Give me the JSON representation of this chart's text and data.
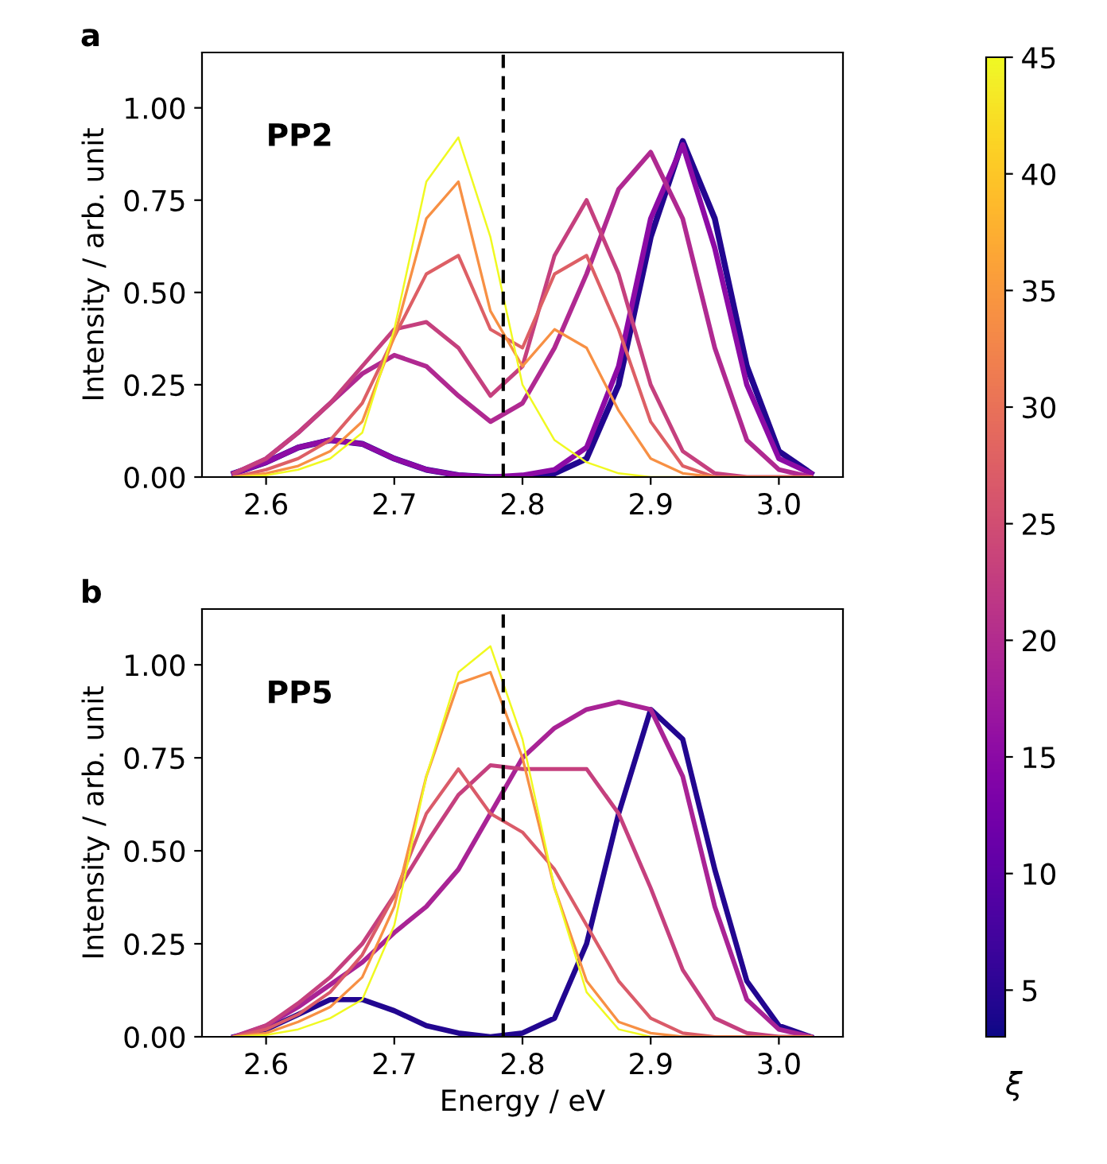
{
  "chart_data": [
    {
      "type": "line",
      "title": "a",
      "ylabel": "Intensity / arb. unit",
      "annotations": [
        "PP2"
      ],
      "x": [
        2.575,
        2.6,
        2.625,
        2.65,
        2.675,
        2.7,
        2.725,
        2.75,
        2.775,
        2.8,
        2.825,
        2.85,
        2.875,
        2.9,
        2.925,
        2.95,
        2.975,
        3.0,
        3.025
      ],
      "series": [
        {
          "color": "#220690",
          "values": [
            0.01,
            0.04,
            0.08,
            0.1,
            0.09,
            0.05,
            0.02,
            0.005,
            0.0,
            0.0,
            0.01,
            0.05,
            0.25,
            0.65,
            0.91,
            0.7,
            0.3,
            0.07,
            0.01
          ]
        },
        {
          "color": "#8d0ba5",
          "values": [
            0.01,
            0.04,
            0.08,
            0.1,
            0.09,
            0.05,
            0.02,
            0.005,
            0.0,
            0.005,
            0.02,
            0.08,
            0.3,
            0.7,
            0.9,
            0.62,
            0.25,
            0.05,
            0.01
          ]
        },
        {
          "color": "#b02991",
          "values": [
            0.01,
            0.05,
            0.12,
            0.2,
            0.28,
            0.33,
            0.3,
            0.22,
            0.15,
            0.2,
            0.35,
            0.55,
            0.78,
            0.88,
            0.7,
            0.35,
            0.1,
            0.02,
            0.0
          ]
        },
        {
          "color": "#c5407e",
          "values": [
            0.01,
            0.05,
            0.12,
            0.2,
            0.3,
            0.4,
            0.42,
            0.35,
            0.22,
            0.3,
            0.6,
            0.75,
            0.55,
            0.25,
            0.07,
            0.01,
            0.0,
            0.0,
            0.0
          ]
        },
        {
          "color": "#dd5f65",
          "values": [
            0.0,
            0.02,
            0.05,
            0.1,
            0.2,
            0.38,
            0.55,
            0.6,
            0.4,
            0.35,
            0.55,
            0.6,
            0.4,
            0.15,
            0.03,
            0.0,
            0.0,
            0.0,
            0.0
          ]
        },
        {
          "color": "#f79044",
          "values": [
            0.0,
            0.01,
            0.03,
            0.07,
            0.15,
            0.38,
            0.7,
            0.8,
            0.45,
            0.3,
            0.4,
            0.35,
            0.18,
            0.05,
            0.01,
            0.0,
            0.0,
            0.0,
            0.0
          ]
        },
        {
          "color": "#f0f921",
          "values": [
            0.0,
            0.005,
            0.02,
            0.05,
            0.12,
            0.4,
            0.8,
            0.92,
            0.65,
            0.25,
            0.1,
            0.04,
            0.01,
            0.0,
            0.0,
            null,
            null,
            null,
            null
          ]
        }
      ],
      "xlim": [
        2.55,
        3.05
      ],
      "xticks": [
        2.6,
        2.7,
        2.8,
        2.9,
        {
          "value": 3.0,
          "label": "3.0"
        }
      ],
      "ylim": [
        0,
        1.15
      ],
      "yticks": [
        {
          "value": 0,
          "label": "0.00"
        },
        {
          "value": 0.25,
          "label": "0.25"
        },
        {
          "value": 0.5,
          "label": "0.50"
        },
        {
          "value": 0.75,
          "label": "0.75"
        },
        {
          "value": 1.0,
          "label": "1.00"
        }
      ],
      "ref_lines": [
        {
          "axis": "x",
          "value": 2.785,
          "color": "#000000",
          "line_style": "dashed"
        }
      ],
      "grid": false,
      "legend": false
    },
    {
      "type": "line",
      "title": "b",
      "xlabel": "Energy / eV",
      "ylabel": "Intensity / arb. unit",
      "annotations": [
        "PP5"
      ],
      "x": [
        2.575,
        2.6,
        2.625,
        2.65,
        2.675,
        2.7,
        2.725,
        2.75,
        2.775,
        2.8,
        2.825,
        2.85,
        2.875,
        2.9,
        2.925,
        2.95,
        2.975,
        3.0,
        3.025
      ],
      "series": [
        {
          "color": "#220690",
          "values": [
            0.0,
            0.02,
            0.06,
            0.1,
            0.1,
            0.07,
            0.03,
            0.01,
            0.0,
            0.01,
            0.05,
            0.25,
            0.6,
            0.88,
            0.8,
            0.45,
            0.15,
            0.03,
            0.0
          ]
        },
        {
          "color": "#a92395",
          "values": [
            0.0,
            0.03,
            0.08,
            0.14,
            0.2,
            0.28,
            0.35,
            0.45,
            0.6,
            0.75,
            0.83,
            0.88,
            0.9,
            0.88,
            0.7,
            0.35,
            0.1,
            0.02,
            0.0
          ]
        },
        {
          "color": "#c5407e",
          "values": [
            0.0,
            0.03,
            0.09,
            0.16,
            0.25,
            0.38,
            0.52,
            0.65,
            0.73,
            0.72,
            0.72,
            0.72,
            0.6,
            0.4,
            0.18,
            0.05,
            0.01,
            0.0,
            0.0
          ]
        },
        {
          "color": "#da5b69",
          "values": [
            0.0,
            0.02,
            0.06,
            0.12,
            0.22,
            0.38,
            0.6,
            0.72,
            0.6,
            0.55,
            0.45,
            0.3,
            0.15,
            0.05,
            0.01,
            0.0,
            0.0,
            0.0,
            0.0
          ]
        },
        {
          "color": "#f79044",
          "values": [
            0.0,
            0.01,
            0.04,
            0.08,
            0.16,
            0.35,
            0.7,
            0.95,
            0.98,
            0.75,
            0.4,
            0.15,
            0.04,
            0.01,
            0.0,
            0.0,
            0.0,
            0.0,
            0.0
          ]
        },
        {
          "color": "#f0f921",
          "values": [
            0.0,
            0.005,
            0.02,
            0.05,
            0.1,
            0.3,
            0.7,
            0.98,
            1.05,
            0.8,
            0.4,
            0.12,
            0.02,
            0.0,
            null,
            null,
            null,
            null,
            null
          ]
        }
      ],
      "xlim": [
        2.55,
        3.05
      ],
      "xticks": [
        2.6,
        2.7,
        2.8,
        2.9,
        {
          "value": 3.0,
          "label": "3.0"
        }
      ],
      "ylim": [
        0,
        1.15
      ],
      "yticks": [
        {
          "value": 0,
          "label": "0.00"
        },
        {
          "value": 0.25,
          "label": "0.25"
        },
        {
          "value": 0.5,
          "label": "0.50"
        },
        {
          "value": 0.75,
          "label": "0.75"
        },
        {
          "value": 1.0,
          "label": "1.00"
        }
      ],
      "ref_lines": [
        {
          "axis": "x",
          "value": 2.785,
          "color": "#000000",
          "line_style": "dashed"
        }
      ],
      "clim": [
        3,
        45
      ],
      "cticks": [
        5,
        10,
        15,
        20,
        25,
        30,
        35,
        40,
        45
      ],
      "clabel": "ξ",
      "grid": false,
      "legend": false
    }
  ]
}
